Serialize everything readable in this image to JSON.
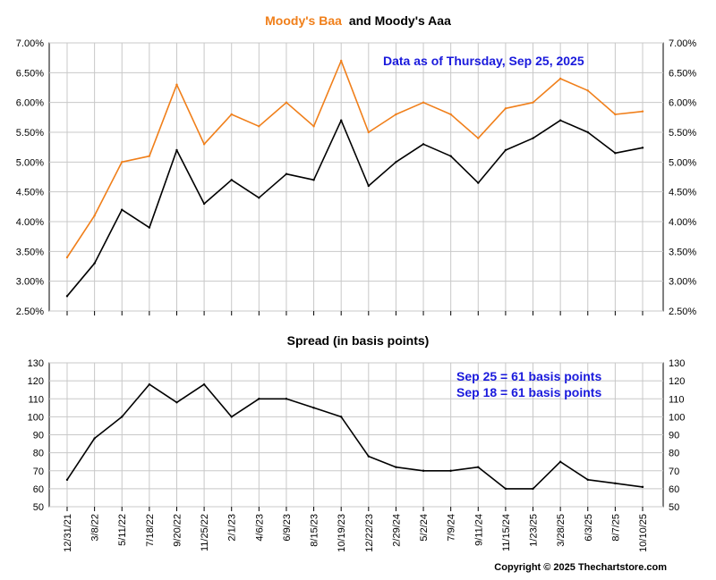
{
  "title": {
    "baa_text": "Moody's Baa",
    "join_text": "and Moody's Aaa",
    "baa_color": "#f07f1a",
    "aaa_color": "#000000"
  },
  "top_annotation": {
    "text": "Data as of Thursday, Sep 25, 2025",
    "color": "#1a1adc"
  },
  "spread_title": "Spread (in basis points)",
  "spread_annotations": [
    "Sep 25 = 61 basis points",
    "Sep 18 = 61 basis points"
  ],
  "copyright": "Copyright © 2025 Thechartstore.com",
  "chart_data": [
    {
      "type": "line",
      "title": "Moody's Baa and Moody's Aaa",
      "xlabel": "",
      "ylabel": "",
      "ylim": [
        2.5,
        7.0
      ],
      "grid": true,
      "x": [
        "12/31/21",
        "3/8/22",
        "5/11/22",
        "7/18/22",
        "9/20/22",
        "11/25/22",
        "2/1/23",
        "4/6/23",
        "6/9/23",
        "8/15/23",
        "10/19/23",
        "12/22/23",
        "2/29/24",
        "5/2/24",
        "7/9/24",
        "9/11/24",
        "11/15/24",
        "1/23/25",
        "3/28/25",
        "6/3/25",
        "8/7/25",
        "10/10/25"
      ],
      "yticks": [
        "2.50%",
        "3.00%",
        "3.50%",
        "4.00%",
        "4.50%",
        "5.00%",
        "5.50%",
        "6.00%",
        "6.50%",
        "7.00%"
      ],
      "series": [
        {
          "name": "Moody's Baa",
          "color": "#f07f1a",
          "values": [
            3.4,
            4.1,
            5.0,
            5.1,
            6.3,
            5.3,
            5.8,
            5.6,
            6.0,
            5.6,
            6.7,
            5.5,
            5.8,
            6.0,
            5.8,
            5.4,
            5.9,
            6.0,
            6.4,
            6.2,
            5.8,
            5.85
          ]
        },
        {
          "name": "Moody's Aaa",
          "color": "#000000",
          "values": [
            2.75,
            3.3,
            4.2,
            3.9,
            5.2,
            4.3,
            4.7,
            4.4,
            4.8,
            4.7,
            5.7,
            4.6,
            5.0,
            5.3,
            5.1,
            4.65,
            5.2,
            5.4,
            5.7,
            5.5,
            5.15,
            5.24
          ]
        }
      ]
    },
    {
      "type": "line",
      "title": "Spread (in basis points)",
      "xlabel": "",
      "ylabel": "",
      "ylim": [
        50,
        130
      ],
      "grid": true,
      "x": [
        "12/31/21",
        "3/8/22",
        "5/11/22",
        "7/18/22",
        "9/20/22",
        "11/25/22",
        "2/1/23",
        "4/6/23",
        "6/9/23",
        "8/15/23",
        "10/19/23",
        "12/22/23",
        "2/29/24",
        "5/2/24",
        "7/9/24",
        "9/11/24",
        "11/15/24",
        "1/23/25",
        "3/28/25",
        "6/3/25",
        "8/7/25",
        "10/10/25"
      ],
      "yticks": [
        "50",
        "60",
        "70",
        "80",
        "90",
        "100",
        "110",
        "120",
        "130"
      ],
      "series": [
        {
          "name": "Spread",
          "color": "#000000",
          "values": [
            65,
            88,
            100,
            118,
            108,
            118,
            100,
            110,
            110,
            105,
            100,
            78,
            72,
            70,
            70,
            72,
            60,
            60,
            75,
            65,
            63,
            61
          ]
        }
      ]
    }
  ]
}
